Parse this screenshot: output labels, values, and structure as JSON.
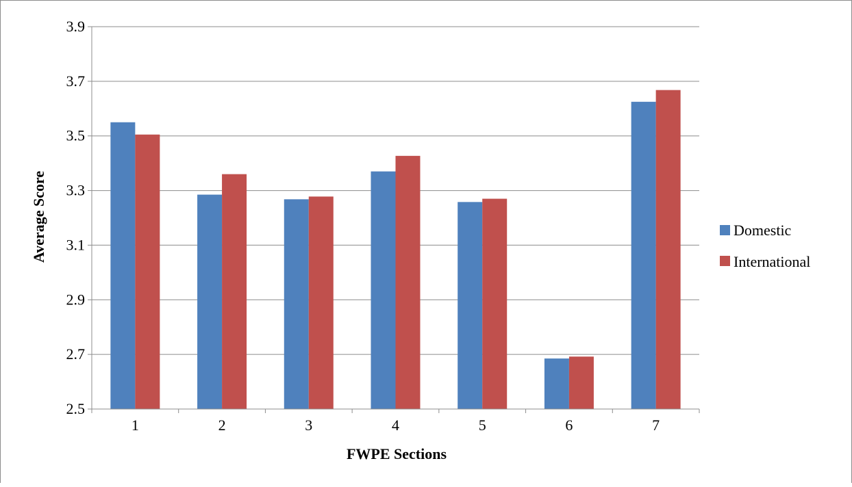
{
  "chart_data": {
    "type": "bar",
    "title": "",
    "xlabel": "FWPE Sections",
    "ylabel": "Average Score",
    "categories": [
      "1",
      "2",
      "3",
      "4",
      "5",
      "6",
      "7"
    ],
    "series": [
      {
        "name": "Domestic",
        "color": "#4f81bd",
        "values": [
          3.55,
          3.285,
          3.268,
          3.37,
          3.258,
          2.685,
          3.625
        ]
      },
      {
        "name": "International",
        "color": "#c0504d",
        "values": [
          3.505,
          3.36,
          3.278,
          3.427,
          3.27,
          2.692,
          3.668
        ]
      }
    ],
    "ylim": [
      2.5,
      3.9
    ],
    "yticks": [
      "2.5",
      "2.7",
      "2.9",
      "3.1",
      "3.3",
      "3.5",
      "3.7",
      "3.9"
    ],
    "grid": true,
    "legend_position": "right"
  }
}
